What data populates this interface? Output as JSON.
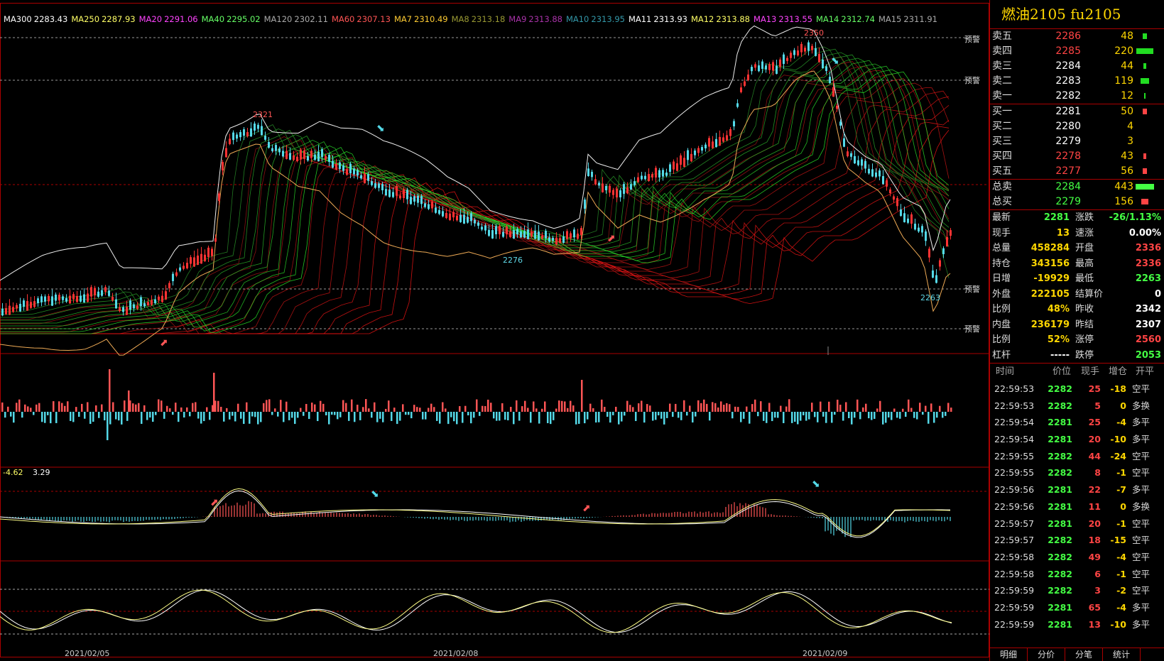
{
  "ma_indicators": [
    {
      "label": "MA300",
      "value": "2283.43",
      "color": "#ffffff"
    },
    {
      "label": "MA250",
      "value": "2287.93",
      "color": "#ffff66"
    },
    {
      "label": "MA20",
      "value": "2291.06",
      "color": "#ff44ff"
    },
    {
      "label": "MA40",
      "value": "2295.02",
      "color": "#66ff66"
    },
    {
      "label": "MA120",
      "value": "2302.11",
      "color": "#aaaaaa"
    },
    {
      "label": "MA60",
      "value": "2307.13",
      "color": "#ff5555"
    },
    {
      "label": "MA7",
      "value": "2310.49",
      "color": "#ffcc33"
    },
    {
      "label": "MA8",
      "value": "2313.18",
      "color": "#999933"
    },
    {
      "label": "MA9",
      "value": "2313.88",
      "color": "#aa33aa"
    },
    {
      "label": "MA10",
      "value": "2313.95",
      "color": "#3399aa"
    },
    {
      "label": "MA11",
      "value": "2313.93",
      "color": "#ffffff"
    },
    {
      "label": "MA12",
      "value": "2313.88",
      "color": "#ffff66"
    },
    {
      "label": "MA13",
      "value": "2313.55",
      "color": "#ff44ff"
    },
    {
      "label": "MA14",
      "value": "2312.74",
      "color": "#66ff66"
    },
    {
      "label": "MA15",
      "value": "2311.91",
      "color": "#aaaaaa"
    }
  ],
  "price_labels": {
    "high1": "2321",
    "high2": "2350",
    "low1": "2276",
    "low2": "2263"
  },
  "alarm_label": "预警",
  "macd_values": {
    "v1": "-4.62",
    "v2": "3.29"
  },
  "x_dates": [
    "2021/02/05",
    "2021/02/08",
    "2021/02/09"
  ],
  "title": "燃油2105  fu2105",
  "sell_book": [
    {
      "label": "卖五",
      "price": "2286",
      "qty": "48",
      "color": "#ff4444",
      "bar": 0.12
    },
    {
      "label": "卖四",
      "price": "2285",
      "qty": "220",
      "color": "#ff4444",
      "bar": 0.5
    },
    {
      "label": "卖三",
      "price": "2284",
      "qty": "44",
      "color": "#ffffff",
      "bar": 0.1
    },
    {
      "label": "卖二",
      "price": "2283",
      "qty": "119",
      "color": "#ffffff",
      "bar": 0.27
    },
    {
      "label": "卖一",
      "price": "2282",
      "qty": "12",
      "color": "#ffffff",
      "bar": 0.03
    }
  ],
  "buy_book": [
    {
      "label": "买一",
      "price": "2281",
      "qty": "50",
      "color": "#ffffff",
      "bar": 0.11
    },
    {
      "label": "买二",
      "price": "2280",
      "qty": "4",
      "color": "#ffffff",
      "bar": 0
    },
    {
      "label": "买三",
      "price": "2279",
      "qty": "3",
      "color": "#ffffff",
      "bar": 0
    },
    {
      "label": "买四",
      "price": "2278",
      "qty": "43",
      "color": "#ff4444",
      "bar": 0.1
    },
    {
      "label": "买五",
      "price": "2277",
      "qty": "56",
      "color": "#ff4444",
      "bar": 0.12
    }
  ],
  "totals": [
    {
      "label": "总卖",
      "price": "2284",
      "qty": "443",
      "color": "#44ff44",
      "bar": 0.55
    },
    {
      "label": "总买",
      "price": "2279",
      "qty": "156",
      "color": "#44ff44",
      "bar": 0.2
    }
  ],
  "stats": [
    {
      "l1": "最新",
      "v1": "2281",
      "c1": "#44ff44",
      "l2": "涨跌",
      "v2": "-26/1.13%",
      "c2": "#44ff44"
    },
    {
      "l1": "现手",
      "v1": "13",
      "c1": "#ffd700",
      "l2": "速涨",
      "v2": "0.00%",
      "c2": "#ffffff"
    },
    {
      "l1": "总量",
      "v1": "458284",
      "c1": "#ffd700",
      "l2": "开盘",
      "v2": "2336",
      "c2": "#ff4444"
    },
    {
      "l1": "持仓",
      "v1": "343156",
      "c1": "#ffd700",
      "l2": "最高",
      "v2": "2336",
      "c2": "#ff4444"
    },
    {
      "l1": "日增",
      "v1": "-19929",
      "c1": "#ffd700",
      "l2": "最低",
      "v2": "2263",
      "c2": "#44ff44"
    },
    {
      "l1": "外盘",
      "v1": "222105",
      "c1": "#ffd700",
      "l2": "结算价",
      "v2": "0",
      "c2": "#ffffff"
    },
    {
      "l1": "比例",
      "v1": "48%",
      "c1": "#ffd700",
      "l2": "昨收",
      "v2": "2342",
      "c2": "#ffffff"
    },
    {
      "l1": "内盘",
      "v1": "236179",
      "c1": "#ffd700",
      "l2": "昨结",
      "v2": "2307",
      "c2": "#ffffff"
    },
    {
      "l1": "比例",
      "v1": "52%",
      "c1": "#ffd700",
      "l2": "涨停",
      "v2": "2560",
      "c2": "#ff4444"
    },
    {
      "l1": "杠杆",
      "v1": "-----",
      "c1": "#ffffff",
      "l2": "跌停",
      "v2": "2053",
      "c2": "#44ff44"
    }
  ],
  "tick_header": {
    "time": "时间",
    "price": "价位",
    "vol": "现手",
    "oi": "增仓",
    "type": "开平"
  },
  "ticks": [
    {
      "time": "22:59:53",
      "price": "2282",
      "vol": "25",
      "oi": "-18",
      "type": "空平"
    },
    {
      "time": "22:59:53",
      "price": "2282",
      "vol": "5",
      "oi": "0",
      "type": "多换"
    },
    {
      "time": "22:59:54",
      "price": "2281",
      "vol": "25",
      "oi": "-4",
      "type": "多平"
    },
    {
      "time": "22:59:54",
      "price": "2281",
      "vol": "20",
      "oi": "-10",
      "type": "多平"
    },
    {
      "time": "22:59:55",
      "price": "2282",
      "vol": "44",
      "oi": "-24",
      "type": "空平"
    },
    {
      "time": "22:59:55",
      "price": "2282",
      "vol": "8",
      "oi": "-1",
      "type": "空平"
    },
    {
      "time": "22:59:56",
      "price": "2281",
      "vol": "22",
      "oi": "-7",
      "type": "多平"
    },
    {
      "time": "22:59:56",
      "price": "2281",
      "vol": "11",
      "oi": "0",
      "type": "多换"
    },
    {
      "time": "22:59:57",
      "price": "2281",
      "vol": "20",
      "oi": "-1",
      "type": "空平"
    },
    {
      "time": "22:59:57",
      "price": "2282",
      "vol": "18",
      "oi": "-15",
      "type": "空平"
    },
    {
      "time": "22:59:58",
      "price": "2282",
      "vol": "49",
      "oi": "-4",
      "type": "空平"
    },
    {
      "time": "22:59:58",
      "price": "2282",
      "vol": "6",
      "oi": "-1",
      "type": "空平"
    },
    {
      "time": "22:59:59",
      "price": "2282",
      "vol": "3",
      "oi": "-2",
      "type": "空平"
    },
    {
      "time": "22:59:59",
      "price": "2281",
      "vol": "65",
      "oi": "-4",
      "type": "多平"
    },
    {
      "time": "22:59:59",
      "price": "2281",
      "vol": "13",
      "oi": "-10",
      "type": "多平"
    }
  ],
  "tabs": [
    "明细",
    "分价",
    "分笔",
    "统计"
  ]
}
